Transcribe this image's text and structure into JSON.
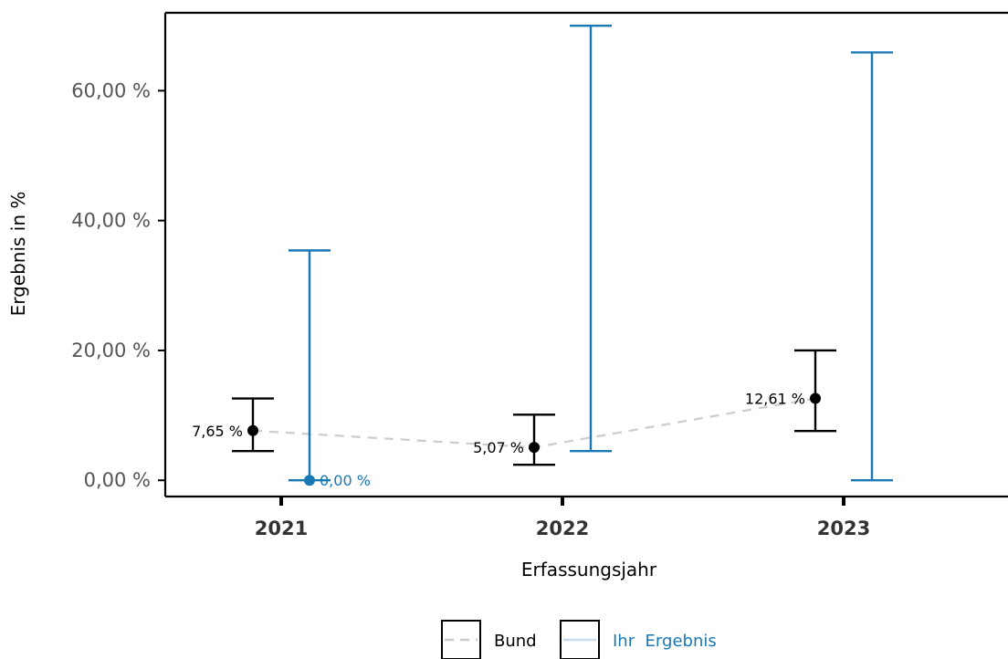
{
  "chart_data": {
    "type": "errorbar",
    "xlabel": "Erfassungsjahr",
    "ylabel": "Ergebnis in %",
    "categories": [
      "2021",
      "2022",
      "2023"
    ],
    "ylim": [
      -2.5,
      72
    ],
    "yticks": [
      0,
      20,
      40,
      60
    ],
    "ytick_labels": [
      "0,00 %",
      "20,00 %",
      "40,00 %",
      "60,00 %"
    ],
    "grid": false,
    "legend_position": "bottom",
    "series": [
      {
        "name": "Bund",
        "color": "#000000",
        "line_color": "#cccccc",
        "line_style": "dashed",
        "points": [
          {
            "x": "2021",
            "value": 7.65,
            "lower": 4.5,
            "upper": 12.6,
            "label": "7,65 %"
          },
          {
            "x": "2022",
            "value": 5.07,
            "lower": 2.4,
            "upper": 10.1,
            "label": "5,07 %"
          },
          {
            "x": "2023",
            "value": 12.61,
            "lower": 7.6,
            "upper": 20.0,
            "label": "12,61 %"
          }
        ]
      },
      {
        "name": "Ihr Ergebnis",
        "color": "#1a78b4",
        "line_color": "#c6dcea",
        "line_style": "solid",
        "points": [
          {
            "x": "2021",
            "value": 0.0,
            "lower": 0.0,
            "upper": 35.4,
            "label": "0,00 %"
          },
          {
            "x": "2022",
            "value": null,
            "lower": 4.5,
            "upper": 70.0,
            "label": ""
          },
          {
            "x": "2023",
            "value": null,
            "lower": 0.0,
            "upper": 65.9,
            "label": ""
          }
        ]
      }
    ]
  },
  "legend": {
    "items": [
      {
        "label": "Bund",
        "color": "#000000"
      },
      {
        "label": "Ihr  Ergebnis",
        "color": "#1a78b4"
      }
    ]
  }
}
